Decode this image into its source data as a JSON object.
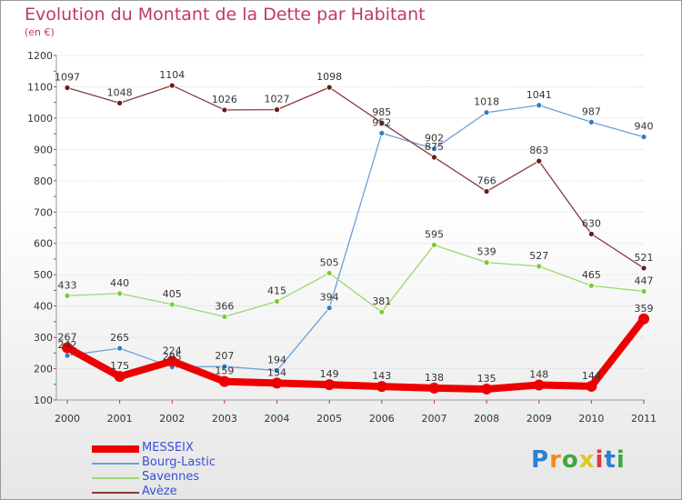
{
  "title": "Evolution du Montant de la Dette par Habitant",
  "subtitle": "(en €)",
  "logo": {
    "text": "Proxiti",
    "colors": [
      "#2e7fd1",
      "#f08a1c",
      "#3fa83f",
      "#e0c81b",
      "#d93a3a",
      "#2e7fd1",
      "#3fa83f"
    ]
  },
  "chart_data": {
    "type": "line",
    "x": [
      "2000",
      "2001",
      "2002",
      "2003",
      "2004",
      "2005",
      "2006",
      "2007",
      "2008",
      "2009",
      "2010",
      "2011"
    ],
    "ylim": [
      100,
      1200
    ],
    "yticks": [
      "100",
      "200",
      "300",
      "400",
      "500",
      "600",
      "700",
      "800",
      "900",
      "1000",
      "1100",
      "1200"
    ],
    "grid": "horizontal",
    "legend_position": "bottom-left",
    "series": [
      {
        "name": "MESSEIX",
        "color": "#ee0000",
        "marker": "#ee0000",
        "thick": true,
        "values": [
          267,
          175,
          224,
          159,
          154,
          149,
          143,
          138,
          135,
          148,
          144,
          359
        ],
        "labels": [
          "267",
          "175",
          "224",
          "159",
          "154",
          "149",
          "143",
          "138",
          "135",
          "148",
          "144",
          "359"
        ]
      },
      {
        "name": "Bourg-Lastic",
        "color": "#6aa0d8",
        "marker": "#2f7ec9",
        "thick": false,
        "values": [
          242,
          265,
          205,
          207,
          194,
          394,
          952,
          902,
          1018,
          1041,
          987,
          940
        ],
        "labels": [
          "242",
          "265",
          "205",
          "207",
          "194",
          "394",
          "952",
          "902",
          "1018",
          "1041",
          "987",
          "940"
        ]
      },
      {
        "name": "Savennes",
        "color": "#9ed86a",
        "marker": "#7acb3c",
        "thick": false,
        "values": [
          433,
          440,
          405,
          366,
          415,
          505,
          381,
          595,
          539,
          527,
          465,
          447
        ],
        "labels": [
          "433",
          "440",
          "405",
          "366",
          "415",
          "505",
          "381",
          "595",
          "539",
          "527",
          "465",
          "447"
        ]
      },
      {
        "name": "Avèze",
        "color": "#8a3a3a",
        "marker": "#6b1a1a",
        "thick": false,
        "values": [
          1097,
          1048,
          1104,
          1026,
          1027,
          1098,
          985,
          875,
          766,
          863,
          630,
          521
        ],
        "labels": [
          "1097",
          "1048",
          "1104",
          "1026",
          "1027",
          "1098",
          "985",
          "875",
          "766",
          "863",
          "630",
          "521"
        ]
      }
    ]
  }
}
